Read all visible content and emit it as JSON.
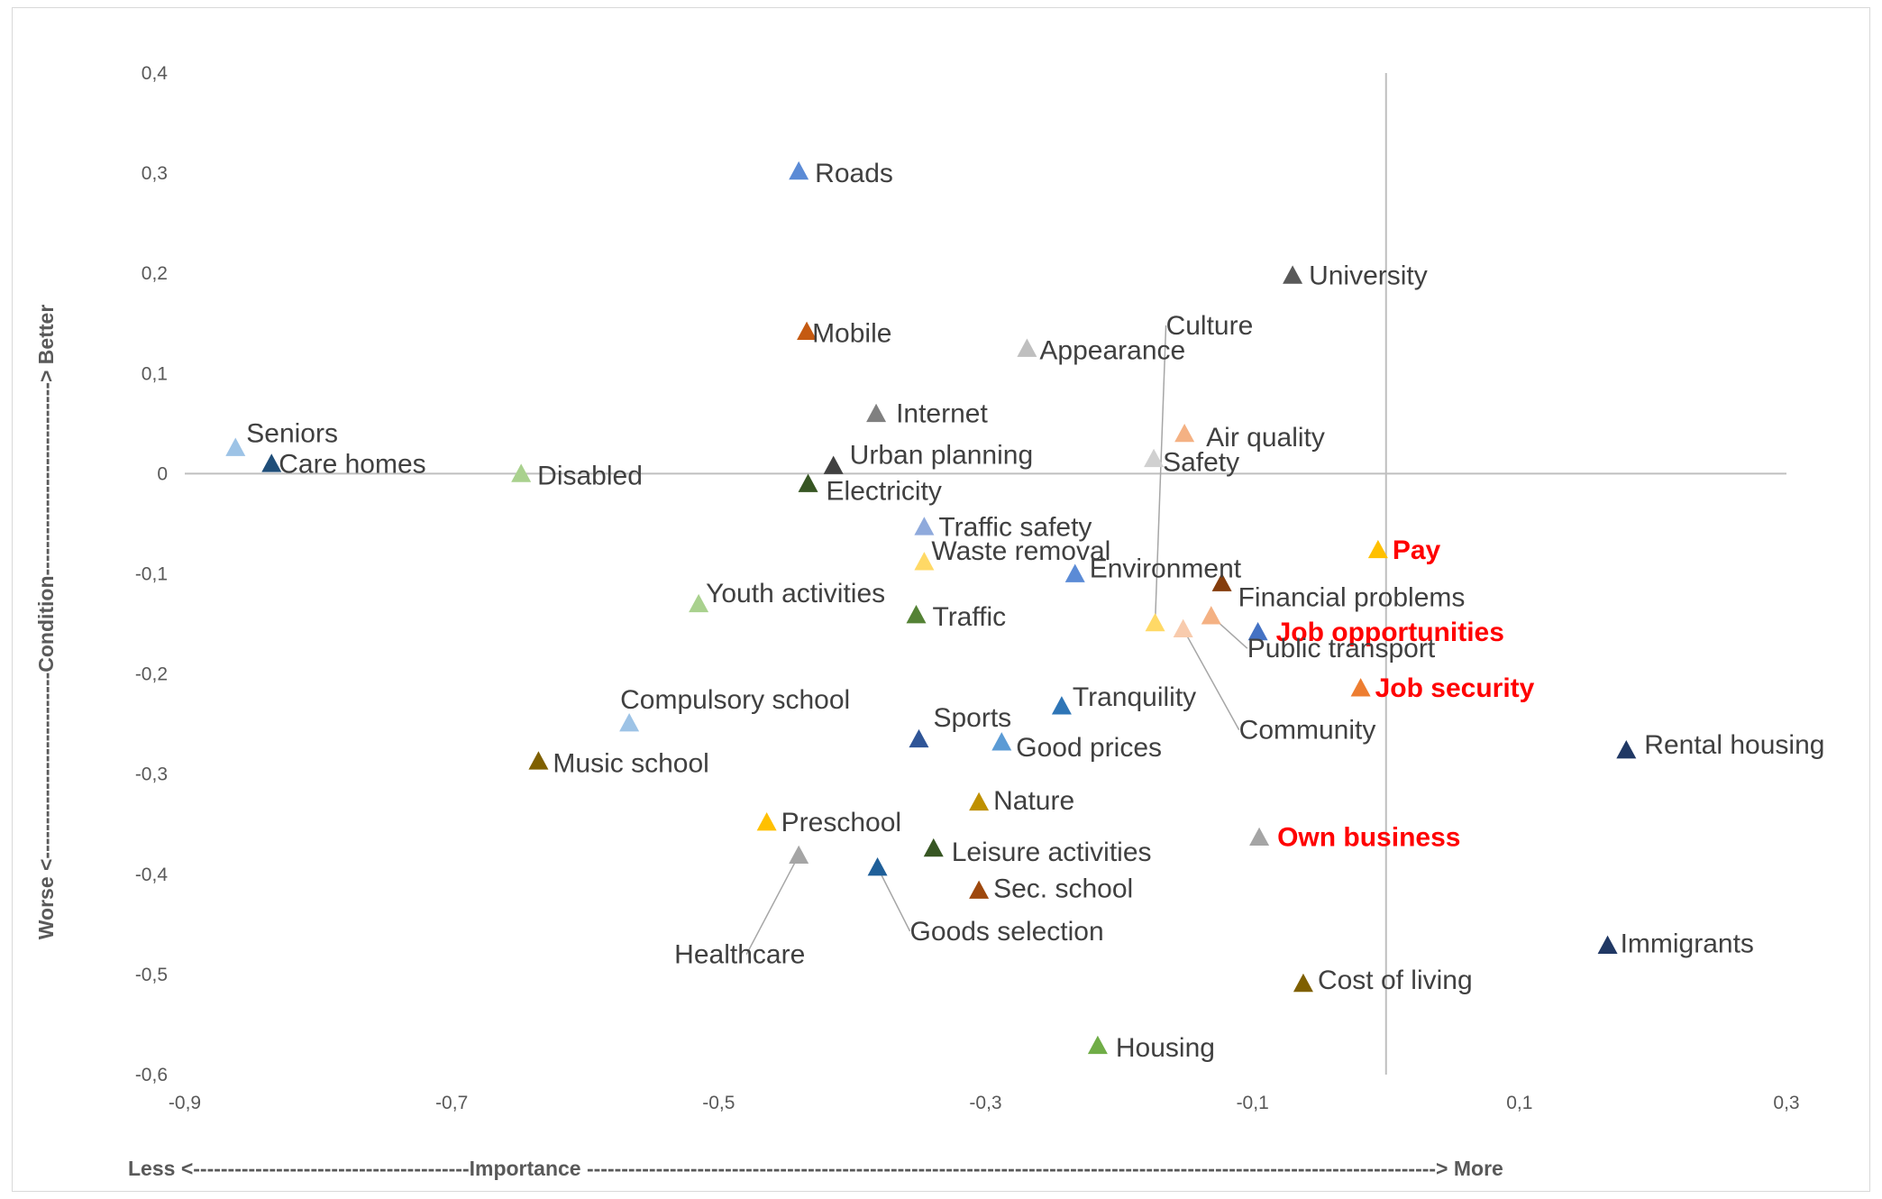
{
  "chart_data": {
    "type": "scatter",
    "xlabel": "Less <----------------------------------------Importance ---------------------------------------------------------------------------------------------------------------------------> More",
    "ylabel": "Worse <---------------------------Condition----------------------------> Better",
    "xlim": [
      -0.9,
      0.3
    ],
    "ylim": [
      -0.6,
      0.4
    ],
    "x_ticks": [
      "-0,9",
      "-0,7",
      "-0,5",
      "-0,3",
      "-0,1",
      "0,1",
      "0,3"
    ],
    "y_ticks": [
      "0,4",
      "0,3",
      "0,2",
      "0,1",
      "0",
      "-0,1",
      "-0,2",
      "-0,3",
      "-0,4",
      "-0,5",
      "-0,6"
    ],
    "grid": false,
    "marker": "triangle",
    "points": [
      {
        "label": "Roads",
        "x": -0.44,
        "y": 0.302,
        "color": "#5b8bd6",
        "highlight": false
      },
      {
        "label": "University",
        "x": -0.07,
        "y": 0.198,
        "color": "#595959",
        "highlight": false
      },
      {
        "label": "Culture",
        "x": -0.173,
        "y": -0.149,
        "color": "#ffd966",
        "highlight": false
      },
      {
        "label": "Mobile",
        "x": -0.434,
        "y": 0.142,
        "color": "#c55a11",
        "highlight": false
      },
      {
        "label": "Appearance",
        "x": -0.269,
        "y": 0.125,
        "color": "#bfbfbf",
        "highlight": false
      },
      {
        "label": "Internet",
        "x": -0.382,
        "y": 0.06,
        "color": "#808080",
        "highlight": false
      },
      {
        "label": "Air quality",
        "x": -0.151,
        "y": 0.04,
        "color": "#f4b183",
        "highlight": false
      },
      {
        "label": "Seniors",
        "x": -0.862,
        "y": 0.026,
        "color": "#9dc3e6",
        "highlight": false
      },
      {
        "label": "Care homes",
        "x": -0.835,
        "y": 0.01,
        "color": "#1f4e79",
        "highlight": false
      },
      {
        "label": "Safety",
        "x": -0.174,
        "y": 0.015,
        "color": "#d0d0d0",
        "highlight": false
      },
      {
        "label": "Urban planning",
        "x": -0.414,
        "y": 0.008,
        "color": "#404040",
        "highlight": false
      },
      {
        "label": "Disabled",
        "x": -0.648,
        "y": 0.0,
        "color": "#a9d18e",
        "highlight": false
      },
      {
        "label": "Electricity",
        "x": -0.433,
        "y": -0.01,
        "color": "#375623",
        "highlight": false
      },
      {
        "label": "Traffic safety",
        "x": -0.346,
        "y": -0.053,
        "color": "#8faadc",
        "highlight": false
      },
      {
        "label": "Pay",
        "x": -0.006,
        "y": -0.076,
        "color": "#ffc000",
        "highlight": true
      },
      {
        "label": "Waste removal",
        "x": -0.346,
        "y": -0.088,
        "color": "#ffd966",
        "highlight": false
      },
      {
        "label": "Environment",
        "x": -0.233,
        "y": -0.1,
        "color": "#5b8bd6",
        "highlight": false
      },
      {
        "label": "Financial problems",
        "x": -0.123,
        "y": -0.109,
        "color": "#843c0c",
        "highlight": false
      },
      {
        "label": "Youth activities",
        "x": -0.515,
        "y": -0.13,
        "color": "#a9d18e",
        "highlight": false
      },
      {
        "label": "Traffic",
        "x": -0.352,
        "y": -0.141,
        "color": "#548235",
        "highlight": false
      },
      {
        "label": "Job opportunities",
        "x": -0.096,
        "y": -0.158,
        "color": "#4472c4",
        "highlight": true
      },
      {
        "label": "Public transport",
        "x": -0.131,
        "y": -0.142,
        "color": "#f4b183",
        "highlight": false
      },
      {
        "label": "Community",
        "x": -0.152,
        "y": -0.155,
        "color": "#f8cbad",
        "highlight": false
      },
      {
        "label": "Job security",
        "x": -0.019,
        "y": -0.214,
        "color": "#ed7d31",
        "highlight": true
      },
      {
        "label": "Tranquility",
        "x": -0.243,
        "y": -0.232,
        "color": "#2e75b6",
        "highlight": false
      },
      {
        "label": "Compulsory school",
        "x": -0.567,
        "y": -0.249,
        "color": "#9dc3e6",
        "highlight": false
      },
      {
        "label": "Sports",
        "x": -0.35,
        "y": -0.265,
        "color": "#2f5597",
        "highlight": false
      },
      {
        "label": "Good prices",
        "x": -0.288,
        "y": -0.268,
        "color": "#5b9bd5",
        "highlight": false
      },
      {
        "label": "Rental housing",
        "x": 0.18,
        "y": -0.276,
        "color": "#203864",
        "highlight": false
      },
      {
        "label": "Music school",
        "x": -0.635,
        "y": -0.287,
        "color": "#7f6000",
        "highlight": false
      },
      {
        "label": "Nature",
        "x": -0.305,
        "y": -0.328,
        "color": "#bf9000",
        "highlight": false
      },
      {
        "label": "Preschool",
        "x": -0.464,
        "y": -0.348,
        "color": "#ffc000",
        "highlight": false
      },
      {
        "label": "Own business",
        "x": -0.095,
        "y": -0.363,
        "color": "#a5a5a5",
        "highlight": true
      },
      {
        "label": "Leisure activities",
        "x": -0.339,
        "y": -0.374,
        "color": "#375623",
        "highlight": false
      },
      {
        "label": "Healthcare",
        "x": -0.44,
        "y": -0.381,
        "color": "#a5a5a5",
        "highlight": false
      },
      {
        "label": "Goods selection",
        "x": -0.381,
        "y": -0.393,
        "color": "#1f5f99",
        "highlight": false
      },
      {
        "label": "Sec. school",
        "x": -0.305,
        "y": -0.416,
        "color": "#9e480e",
        "highlight": false
      },
      {
        "label": "Immigrants",
        "x": 0.166,
        "y": -0.471,
        "color": "#203864",
        "highlight": false
      },
      {
        "label": "Cost of living",
        "x": -0.062,
        "y": -0.509,
        "color": "#7f6000",
        "highlight": false
      },
      {
        "label": "Housing",
        "x": -0.216,
        "y": -0.571,
        "color": "#70ad47",
        "highlight": false
      }
    ]
  }
}
